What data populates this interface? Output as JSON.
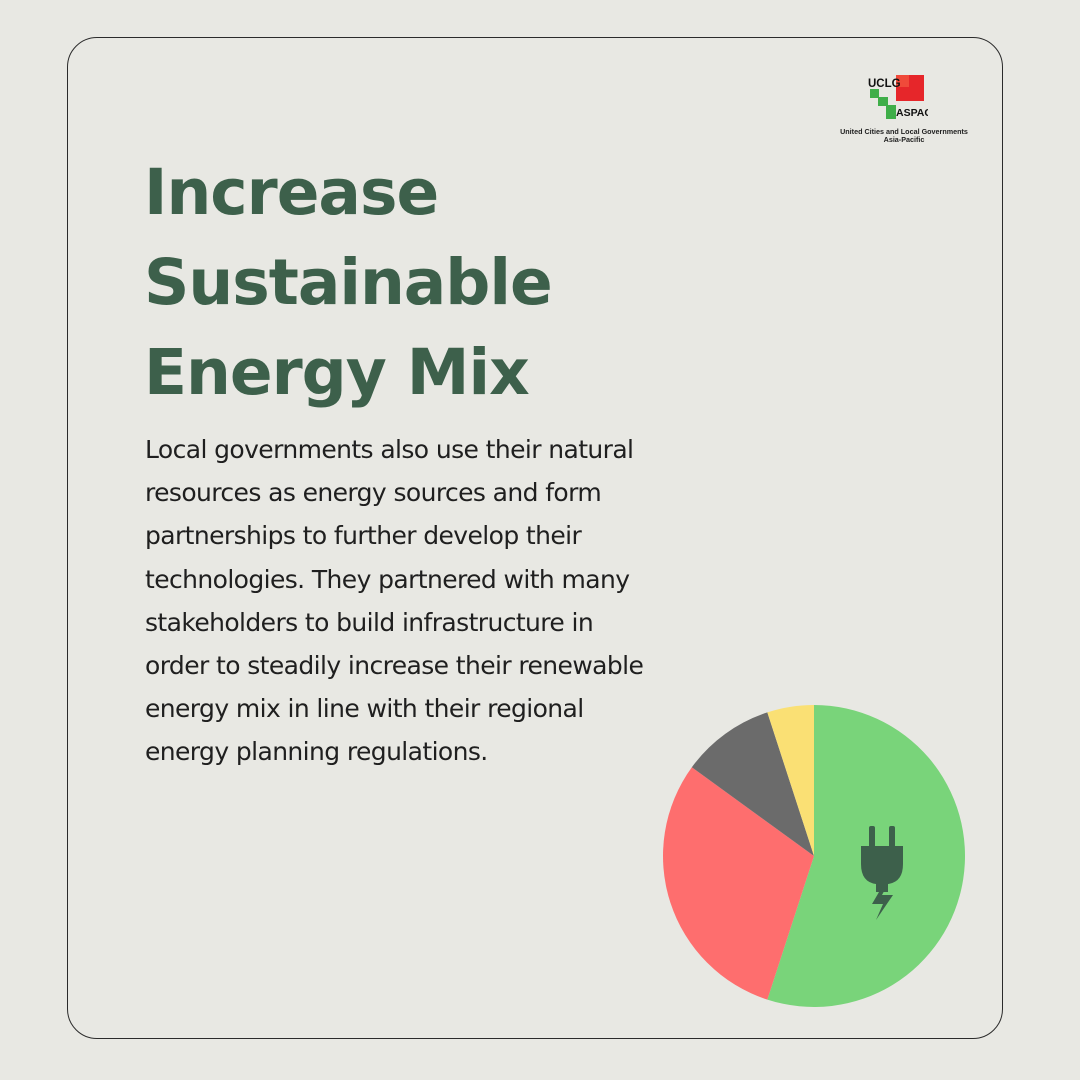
{
  "logo": {
    "top": "UCLG",
    "bottom": "ASPAC",
    "subtitle": "United Cities and Local Governments\nAsia-Pacific",
    "colors": {
      "green": "#3fae49",
      "red": "#e6262a"
    }
  },
  "headline": "Increase Sustainable Energy Mix",
  "body": "Local governments also use their natural resources as energy sources and form partnerships to further develop their technologies. They partnered with many stakeholders to build infrastructure in order to steadily increase their renewable energy mix in line with their regional energy planning regulations.",
  "colors": {
    "background": "#e8e8e3",
    "headline": "#3d604b",
    "text": "#1f1f1f"
  },
  "chart_data": {
    "type": "pie",
    "slices": [
      {
        "value": 55,
        "color": "#79d47a"
      },
      {
        "value": 30,
        "color": "#fe6e6e"
      },
      {
        "value": 10,
        "color": "#6b6b6b"
      },
      {
        "value": 5,
        "color": "#fae074"
      }
    ],
    "center_icon": "plug-lightning-icon"
  }
}
